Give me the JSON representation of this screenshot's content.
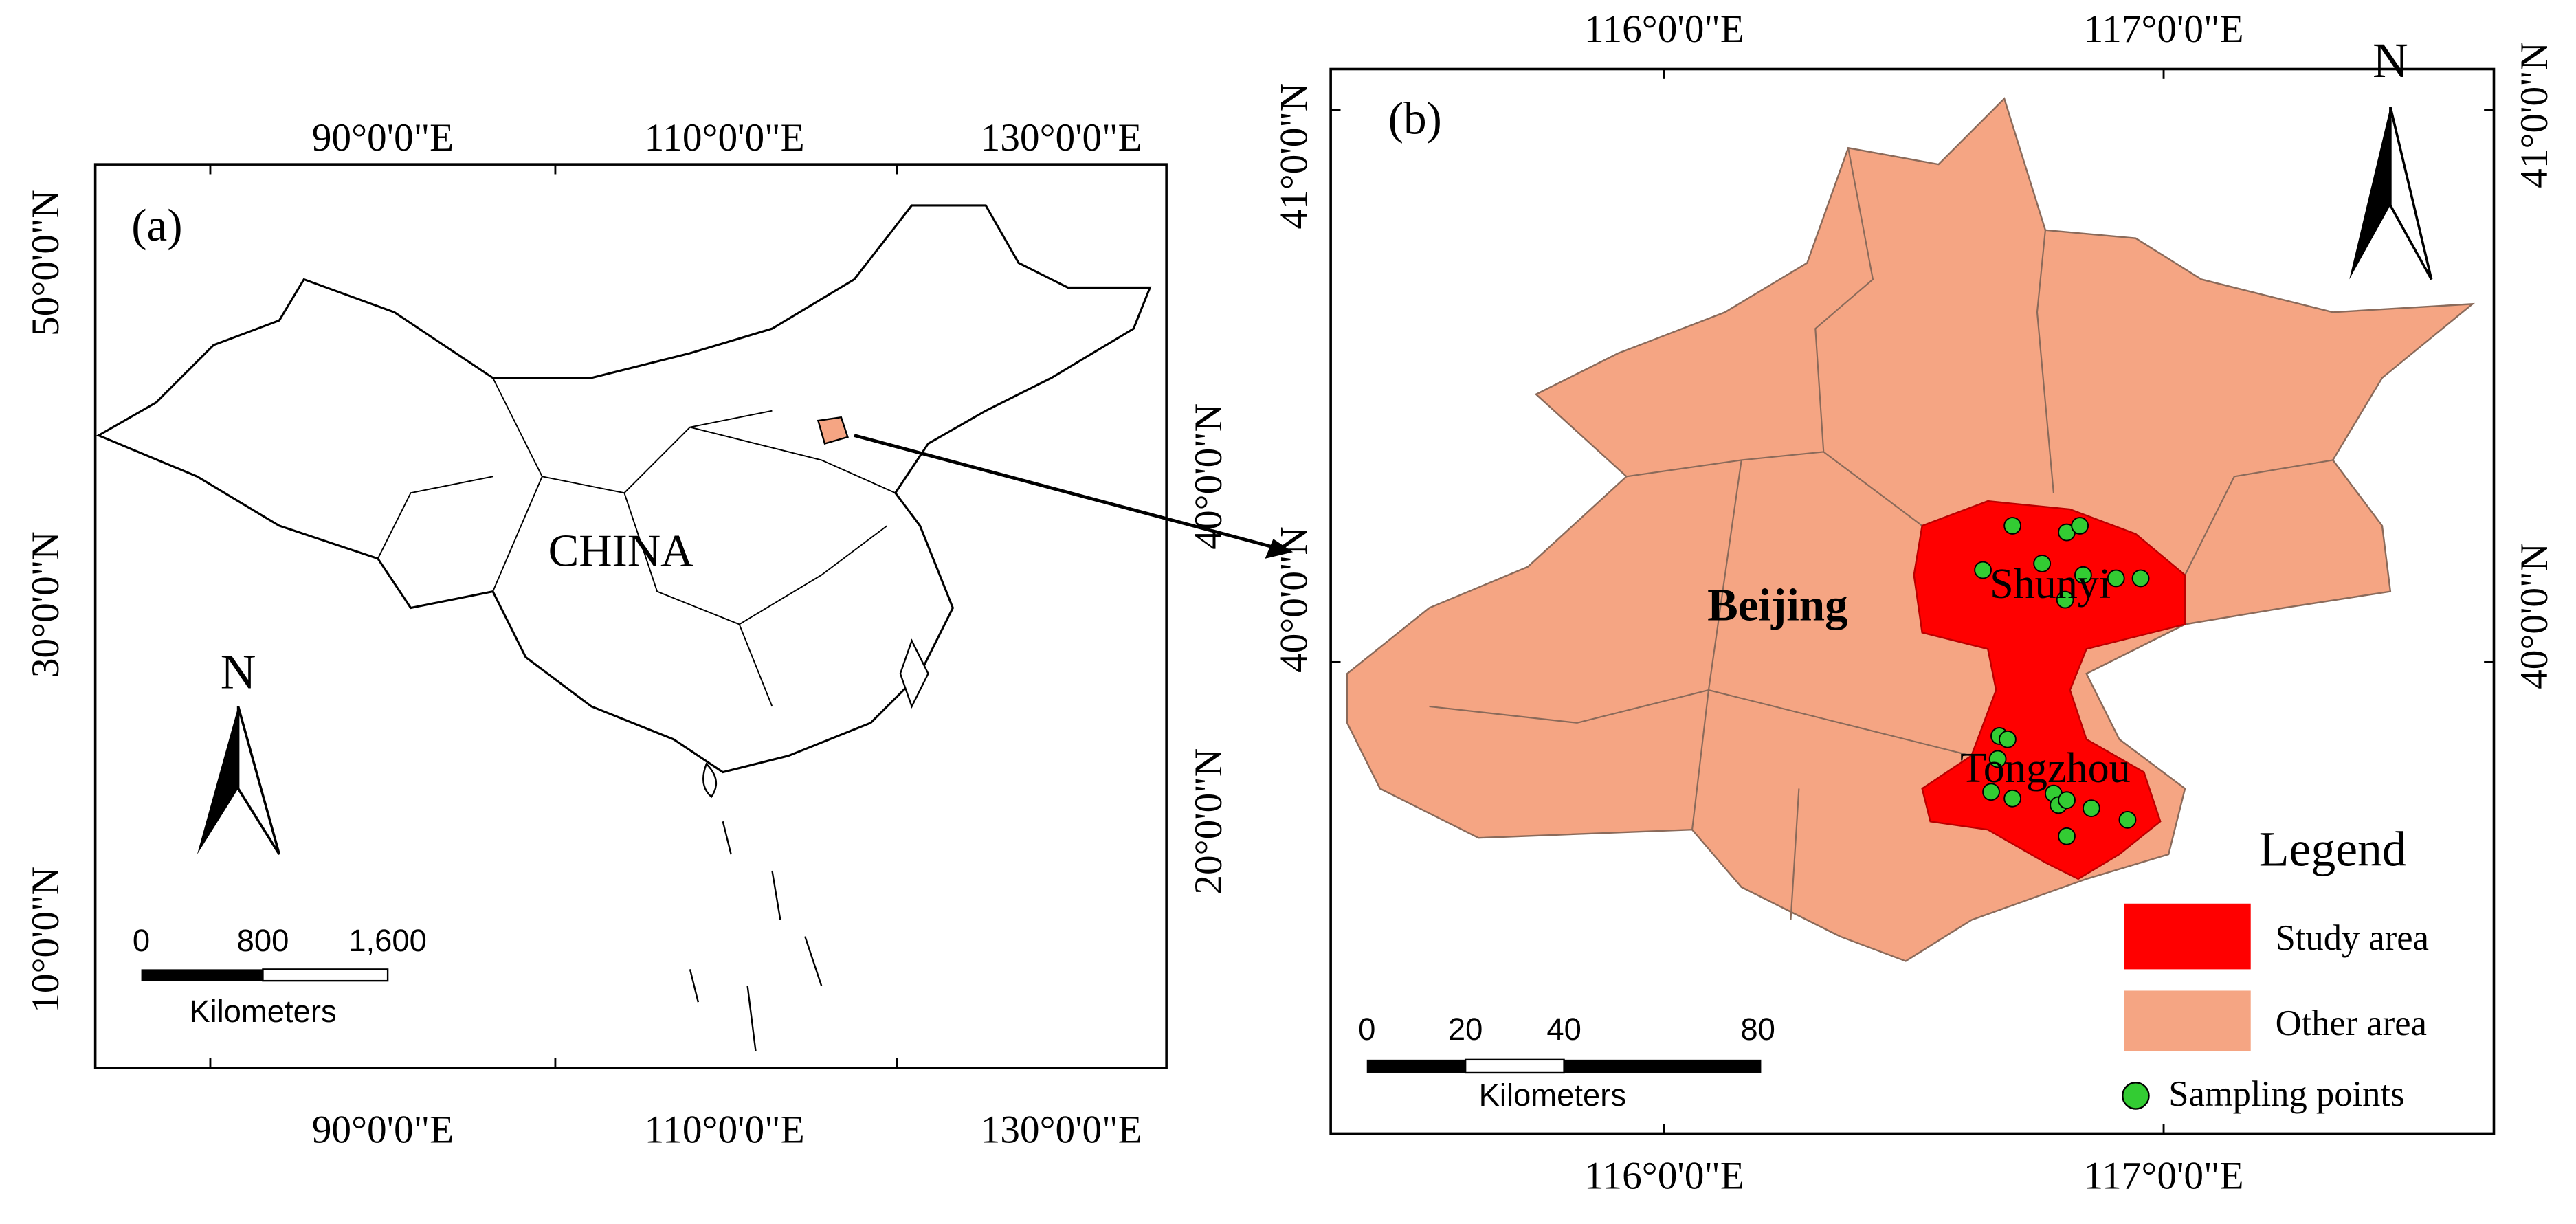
{
  "panel_a": {
    "label": "(a)",
    "top_ticks": [
      "90°0'0\"E",
      "110°0'0\"E",
      "130°0'0\"E"
    ],
    "bottom_ticks": [
      "90°0'0\"E",
      "110°0'0\"E",
      "130°0'0\"E"
    ],
    "left_ticks": [
      "50°0'0\"N",
      "30°0'0\"N",
      "10°0'0\"N"
    ],
    "right_ticks": [
      "40°0'0\"N",
      "20°0'0\"N"
    ],
    "country": "CHINA",
    "north": "N",
    "scale_bar": {
      "ticks": [
        "0",
        "800",
        "1,600"
      ],
      "unit": "Kilometers"
    }
  },
  "panel_b": {
    "label": "(b)",
    "top_ticks": [
      "116°0'0\"E",
      "117°0'0\"E"
    ],
    "bottom_ticks": [
      "116°0'0\"E",
      "117°0'0\"E"
    ],
    "left_ticks": [
      "41°0'0\"N",
      "40°0'0\"N"
    ],
    "right_ticks": [
      "41°0'0\"N",
      "40°0'0\"N"
    ],
    "city": "Beijing",
    "districts": [
      "Shunyi",
      "Tongzhou"
    ],
    "north": "N",
    "legend": {
      "title": "Legend",
      "items": [
        "Study area",
        "Other area",
        "Sampling points"
      ]
    },
    "scale_bar": {
      "ticks": [
        "0",
        "20",
        "40",
        "80"
      ],
      "unit": "Kilometers"
    }
  }
}
